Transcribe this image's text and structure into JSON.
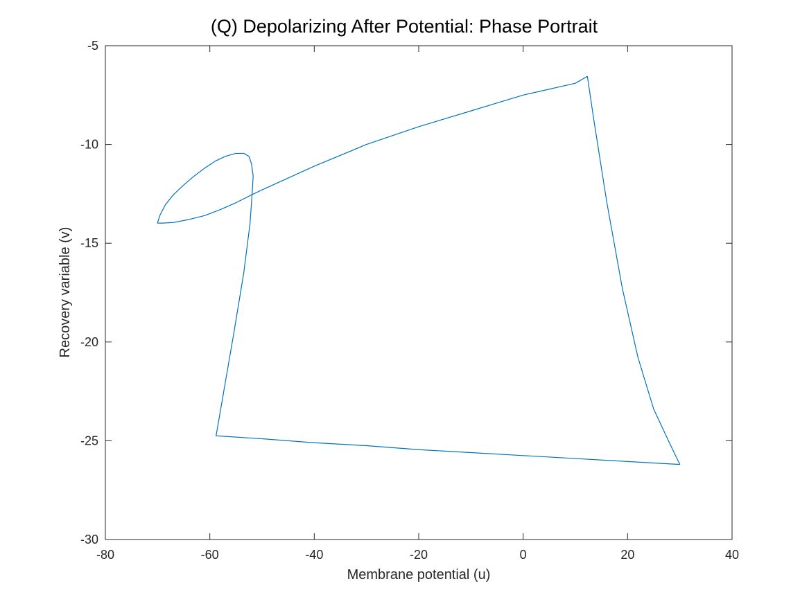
{
  "chart_data": {
    "type": "line",
    "title": "(Q) Depolarizing After Potential: Phase Portrait",
    "xlabel": "Membrane potential (u)",
    "ylabel": "Recovery variable (v)",
    "xlim": [
      -80,
      40
    ],
    "ylim": [
      -30,
      -5
    ],
    "xticks": [
      -80,
      -60,
      -40,
      -20,
      0,
      20,
      40
    ],
    "yticks": [
      -30,
      -25,
      -20,
      -15,
      -10,
      -5
    ],
    "xtick_labels": [
      "-80",
      "-60",
      "-40",
      "-20",
      "0",
      "20",
      "40"
    ],
    "ytick_labels": [
      "-30",
      "-25",
      "-20",
      "-15",
      "-10",
      "-5"
    ],
    "grid": false,
    "box": true,
    "line_color": "#0072BD",
    "series": [
      {
        "x": [
          -70.0,
          -69.5,
          -68.5,
          -67.0,
          -65.0,
          -63.0,
          -61.0,
          -59.0,
          -57.0,
          -55.0,
          -53.5,
          -52.5,
          -52.0,
          -51.7,
          -51.9,
          -52.3,
          -53.5,
          -55.5,
          -58.8,
          -58.8,
          -50.0,
          -40.0,
          -30.0,
          -20.0,
          -10.0,
          0.0,
          10.0,
          20.0,
          30.0,
          28.0,
          25.0,
          22.0,
          19.0,
          16.0,
          13.5,
          12.3,
          10.0,
          5.0,
          0.0,
          -5.0,
          -10.0,
          -20.0,
          -30.0,
          -40.0,
          -50.0,
          -52.0,
          -55.0,
          -58.0,
          -61.0,
          -64.0,
          -67.0,
          -69.0,
          -70.0
        ],
        "y": [
          -13.95,
          -13.55,
          -13.05,
          -12.55,
          -12.05,
          -11.6,
          -11.2,
          -10.85,
          -10.6,
          -10.45,
          -10.45,
          -10.6,
          -11.0,
          -11.6,
          -12.5,
          -14.0,
          -16.5,
          -19.7,
          -24.75,
          -24.75,
          -24.9,
          -25.1,
          -25.25,
          -25.45,
          -25.6,
          -25.75,
          -25.9,
          -26.05,
          -26.2,
          -25.1,
          -23.4,
          -20.8,
          -17.3,
          -12.9,
          -8.7,
          -6.55,
          -6.9,
          -7.2,
          -7.5,
          -7.9,
          -8.3,
          -9.1,
          -10.0,
          -11.1,
          -12.3,
          -12.55,
          -12.95,
          -13.3,
          -13.6,
          -13.8,
          -13.95,
          -13.98,
          -13.98
        ]
      }
    ]
  }
}
